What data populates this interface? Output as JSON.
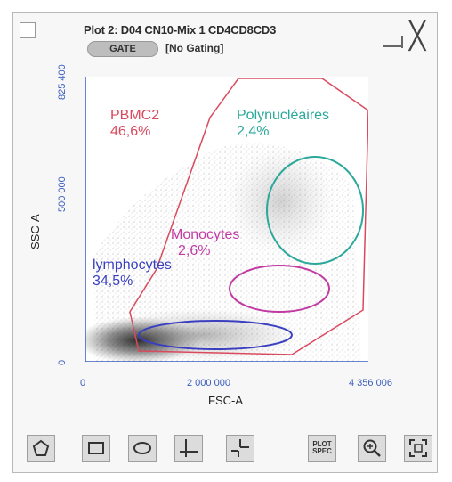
{
  "window": {
    "title": "Plot 2: D04 CN10-Mix 1 CD4CD8CD3",
    "gate_button": "GATE",
    "gating_status": "[No Gating]"
  },
  "axes": {
    "x_label": "FSC-A",
    "y_label": "SSC-A",
    "x_ticks": [
      "0",
      "2 000 000",
      "4 356 006"
    ],
    "y_ticks": [
      "0",
      "500 000",
      "825 400"
    ]
  },
  "gates": [
    {
      "name": "PBMC2",
      "percent": "46,6%",
      "color": "#d94a5e"
    },
    {
      "name": "Polynucléaires",
      "percent": "2,4%",
      "color": "#2aa89a"
    },
    {
      "name": "Monocytes",
      "percent": "2,6%",
      "color": "#c13ba3"
    },
    {
      "name": "lymphocytes",
      "percent": "34,5%",
      "color": "#3a3fbf"
    }
  ],
  "toolbar": {
    "plot_spec_line1": "PLOT",
    "plot_spec_line2": "SPEC"
  },
  "icons": [
    "polygon-gate-icon",
    "rectangle-gate-icon",
    "ellipse-gate-icon",
    "quadrant-gate-icon",
    "crosshair-gate-icon",
    "plot-spec-icon",
    "zoom-icon",
    "fit-to-window-icon",
    "close-icon",
    "minimize-icon"
  ]
}
